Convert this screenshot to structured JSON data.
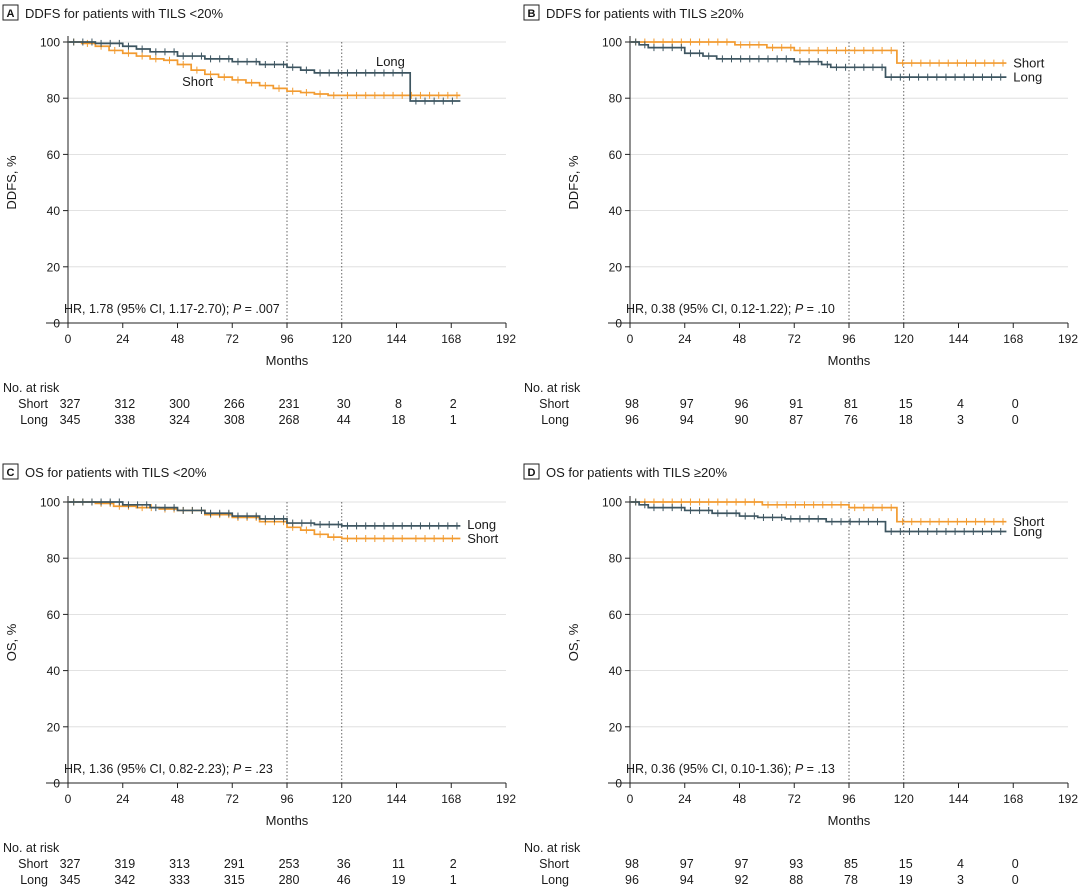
{
  "chart_data": [
    {
      "type": "line",
      "panel_letter": "A",
      "title": "DDFS for patients with TILS <20%",
      "xlabel": "Months",
      "ylabel": "DDFS, %",
      "xlim": [
        0,
        192
      ],
      "ylim": [
        0,
        100
      ],
      "xticks": [
        "0",
        "24",
        "48",
        "72",
        "96",
        "120",
        "144",
        "168",
        "192"
      ],
      "yticks": [
        "0",
        "20",
        "40",
        "60",
        "80",
        "100"
      ],
      "reference_lines_x": [
        96,
        120
      ],
      "annotation": {
        "prefix": "HR, 1.78 (95% CI, 1.17-2.70); ",
        "p_label": "P",
        "p_value": " = .007"
      },
      "series": [
        {
          "name": "Short",
          "color": "#F29B30",
          "points": [
            [
              0,
              100
            ],
            [
              6,
              99.5
            ],
            [
              12,
              98.5
            ],
            [
              18,
              97
            ],
            [
              24,
              96
            ],
            [
              30,
              95
            ],
            [
              36,
              94
            ],
            [
              42,
              93.5
            ],
            [
              48,
              92
            ],
            [
              54,
              90
            ],
            [
              60,
              88.5
            ],
            [
              66,
              87.5
            ],
            [
              72,
              86.5
            ],
            [
              78,
              85.5
            ],
            [
              84,
              84.5
            ],
            [
              90,
              83.5
            ],
            [
              96,
              82.5
            ],
            [
              102,
              82
            ],
            [
              108,
              81.5
            ],
            [
              114,
              81
            ],
            [
              120,
              81
            ],
            [
              132,
              81
            ],
            [
              144,
              81
            ],
            [
              156,
              81
            ],
            [
              172,
              81
            ]
          ],
          "label_at": [
            50,
            86
          ]
        },
        {
          "name": "Long",
          "color": "#3D5560",
          "points": [
            [
              0,
              100
            ],
            [
              12,
              99.5
            ],
            [
              24,
              98.5
            ],
            [
              30,
              97.5
            ],
            [
              36,
              96.5
            ],
            [
              48,
              95
            ],
            [
              60,
              94
            ],
            [
              72,
              93
            ],
            [
              84,
              92
            ],
            [
              96,
              91
            ],
            [
              102,
              90
            ],
            [
              108,
              89
            ],
            [
              120,
              89
            ],
            [
              132,
              89
            ],
            [
              144,
              89
            ],
            [
              150,
              89
            ],
            [
              150,
              79
            ],
            [
              172,
              79
            ]
          ],
          "label_at": [
            135,
            93
          ]
        }
      ],
      "risk_table": {
        "title": "No. at risk",
        "times": [
          0,
          24,
          48,
          72,
          96,
          120,
          144,
          168
        ],
        "rows": [
          {
            "name": "Short",
            "values": [
              "327",
              "312",
              "300",
              "266",
              "231",
              "30",
              "8",
              "2"
            ]
          },
          {
            "name": "Long",
            "values": [
              "345",
              "338",
              "324",
              "308",
              "268",
              "44",
              "18",
              "1"
            ]
          }
        ]
      }
    },
    {
      "type": "line",
      "panel_letter": "B",
      "title": "DDFS for patients with TILS ≥20%",
      "xlabel": "Months",
      "ylabel": "DDFS, %",
      "xlim": [
        0,
        192
      ],
      "ylim": [
        0,
        100
      ],
      "xticks": [
        "0",
        "24",
        "48",
        "72",
        "96",
        "120",
        "144",
        "168",
        "192"
      ],
      "yticks": [
        "0",
        "20",
        "40",
        "60",
        "80",
        "100"
      ],
      "reference_lines_x": [
        96,
        120
      ],
      "annotation": {
        "prefix": "HR, 0.38 (95% CI, 0.12-1.22); ",
        "p_label": "P",
        "p_value": " = .10"
      },
      "series": [
        {
          "name": "Short",
          "color": "#F29B30",
          "points": [
            [
              0,
              100
            ],
            [
              46,
              100
            ],
            [
              46,
              99
            ],
            [
              60,
              99
            ],
            [
              60,
              98
            ],
            [
              72,
              98
            ],
            [
              72,
              97
            ],
            [
              117,
              97
            ],
            [
              117,
              92.5
            ],
            [
              165,
              92.5
            ]
          ],
          "label_at": [
            168,
            92.5
          ]
        },
        {
          "name": "Long",
          "color": "#3D5560",
          "points": [
            [
              0,
              100
            ],
            [
              4,
              100
            ],
            [
              4,
              99
            ],
            [
              8,
              99
            ],
            [
              8,
              98
            ],
            [
              24,
              98
            ],
            [
              24,
              96
            ],
            [
              32,
              96
            ],
            [
              32,
              95
            ],
            [
              38,
              95
            ],
            [
              38,
              94
            ],
            [
              72,
              94
            ],
            [
              72,
              93
            ],
            [
              84,
              93
            ],
            [
              84,
              92
            ],
            [
              88,
              92
            ],
            [
              88,
              91
            ],
            [
              112,
              91
            ],
            [
              112,
              87.5
            ],
            [
              165,
              87.5
            ]
          ],
          "label_at": [
            168,
            87.5
          ]
        }
      ],
      "risk_table": {
        "title": "No. at risk",
        "times": [
          0,
          24,
          48,
          72,
          96,
          120,
          144,
          168
        ],
        "rows": [
          {
            "name": "Short",
            "values": [
              "98",
              "97",
              "96",
              "91",
              "81",
              "15",
              "4",
              "0"
            ]
          },
          {
            "name": "Long",
            "values": [
              "96",
              "94",
              "90",
              "87",
              "76",
              "18",
              "3",
              "0"
            ]
          }
        ]
      }
    },
    {
      "type": "line",
      "panel_letter": "C",
      "title": "OS for patients with TILS <20%",
      "xlabel": "Months",
      "ylabel": "OS, %",
      "xlim": [
        0,
        192
      ],
      "ylim": [
        0,
        100
      ],
      "xticks": [
        "0",
        "24",
        "48",
        "72",
        "96",
        "120",
        "144",
        "168",
        "192"
      ],
      "yticks": [
        "0",
        "20",
        "40",
        "60",
        "80",
        "100"
      ],
      "reference_lines_x": [
        96,
        120
      ],
      "annotation": {
        "prefix": "HR, 1.36 (95% CI, 0.82-2.23); ",
        "p_label": "P",
        "p_value": " = .23"
      },
      "series": [
        {
          "name": "Short",
          "color": "#F29B30",
          "points": [
            [
              0,
              100
            ],
            [
              12,
              99.5
            ],
            [
              20,
              98.5
            ],
            [
              30,
              98
            ],
            [
              40,
              97.5
            ],
            [
              48,
              97
            ],
            [
              60,
              95.5
            ],
            [
              72,
              94.5
            ],
            [
              84,
              93
            ],
            [
              96,
              91
            ],
            [
              102,
              90
            ],
            [
              108,
              88.5
            ],
            [
              114,
              87.5
            ],
            [
              120,
              87
            ],
            [
              132,
              87
            ],
            [
              150,
              87
            ],
            [
              172,
              87
            ]
          ],
          "label_at": [
            175,
            87
          ]
        },
        {
          "name": "Long",
          "color": "#3D5560",
          "points": [
            [
              0,
              100
            ],
            [
              12,
              100
            ],
            [
              24,
              99
            ],
            [
              36,
              98
            ],
            [
              48,
              97
            ],
            [
              60,
              96
            ],
            [
              72,
              95
            ],
            [
              84,
              94
            ],
            [
              96,
              92.5
            ],
            [
              108,
              92
            ],
            [
              120,
              91.5
            ],
            [
              144,
              91.5
            ],
            [
              172,
              91.5
            ]
          ],
          "label_at": [
            175,
            92
          ]
        }
      ],
      "risk_table": {
        "title": "No. at risk",
        "times": [
          0,
          24,
          48,
          72,
          96,
          120,
          144,
          168
        ],
        "rows": [
          {
            "name": "Short",
            "values": [
              "327",
              "319",
              "313",
              "291",
              "253",
              "36",
              "11",
              "2"
            ]
          },
          {
            "name": "Long",
            "values": [
              "345",
              "342",
              "333",
              "315",
              "280",
              "46",
              "19",
              "1"
            ]
          }
        ]
      }
    },
    {
      "type": "line",
      "panel_letter": "D",
      "title": "OS for patients with TILS ≥20%",
      "xlabel": "Months",
      "ylabel": "OS, %",
      "xlim": [
        0,
        192
      ],
      "ylim": [
        0,
        100
      ],
      "xticks": [
        "0",
        "24",
        "48",
        "72",
        "96",
        "120",
        "144",
        "168",
        "192"
      ],
      "yticks": [
        "0",
        "20",
        "40",
        "60",
        "80",
        "100"
      ],
      "reference_lines_x": [
        96,
        120
      ],
      "annotation": {
        "prefix": "HR, 0.36 (95% CI, 0.10-1.36); ",
        "p_label": "P",
        "p_value": " = .13"
      },
      "series": [
        {
          "name": "Short",
          "color": "#F29B30",
          "points": [
            [
              0,
              100
            ],
            [
              58,
              100
            ],
            [
              58,
              99
            ],
            [
              96,
              99
            ],
            [
              96,
              98
            ],
            [
              117,
              98
            ],
            [
              117,
              93
            ],
            [
              165,
              93
            ]
          ],
          "label_at": [
            168,
            93
          ]
        },
        {
          "name": "Long",
          "color": "#3D5560",
          "points": [
            [
              0,
              100
            ],
            [
              4,
              100
            ],
            [
              4,
              99
            ],
            [
              8,
              99
            ],
            [
              8,
              98
            ],
            [
              24,
              98
            ],
            [
              24,
              97
            ],
            [
              36,
              97
            ],
            [
              36,
              96
            ],
            [
              48,
              96
            ],
            [
              48,
              95
            ],
            [
              56,
              95
            ],
            [
              56,
              94.5
            ],
            [
              68,
              94.5
            ],
            [
              68,
              94
            ],
            [
              86,
              94
            ],
            [
              86,
              93
            ],
            [
              112,
              93
            ],
            [
              112,
              89.5
            ],
            [
              165,
              89.5
            ]
          ],
          "label_at": [
            168,
            89.5
          ]
        }
      ],
      "risk_table": {
        "title": "No. at risk",
        "times": [
          0,
          24,
          48,
          72,
          96,
          120,
          144,
          168
        ],
        "rows": [
          {
            "name": "Short",
            "values": [
              "98",
              "97",
              "97",
              "93",
              "85",
              "15",
              "4",
              "0"
            ]
          },
          {
            "name": "Long",
            "values": [
              "96",
              "94",
              "92",
              "88",
              "78",
              "19",
              "3",
              "0"
            ]
          }
        ]
      }
    }
  ]
}
